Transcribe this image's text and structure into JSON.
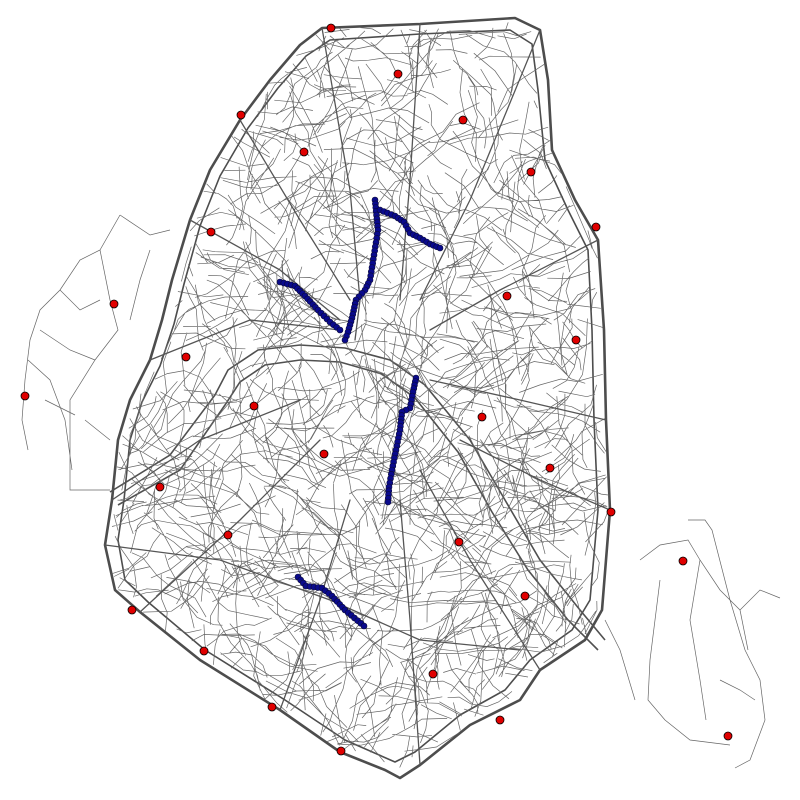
{
  "map": {
    "colors": {
      "background": "#ffffff",
      "streets": "#555555",
      "poi_marker": "#e00000",
      "route_marker": "#0a0a8c"
    },
    "poi_markers": {
      "color": "#e00000",
      "count": 29
    },
    "routes": [
      {
        "id": "route-1"
      },
      {
        "id": "route-2"
      },
      {
        "id": "route-3"
      },
      {
        "id": "route-4"
      }
    ]
  }
}
